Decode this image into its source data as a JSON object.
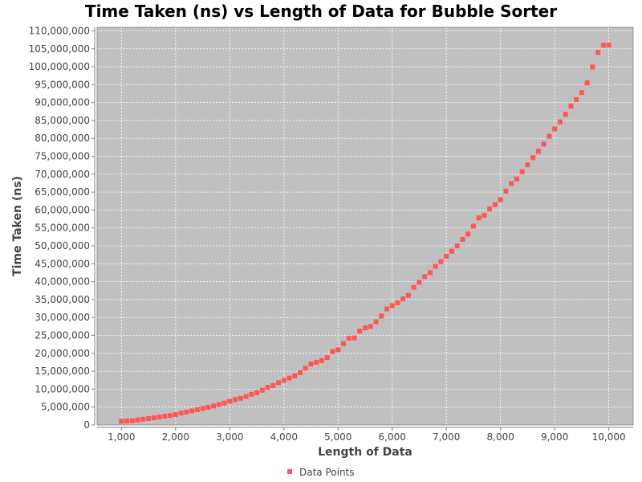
{
  "chart_data": {
    "type": "scatter",
    "title": "Time Taken (ns) vs Length of Data for Bubble Sorter",
    "xlabel": "Length of Data",
    "ylabel": "Time Taken (ns)",
    "xlim": [
      550,
      10450
    ],
    "ylim": [
      0,
      111000000
    ],
    "x_ticks": [
      1000,
      2000,
      3000,
      4000,
      5000,
      6000,
      7000,
      8000,
      9000,
      10000
    ],
    "x_tick_labels": [
      "1,000",
      "2,000",
      "3,000",
      "4,000",
      "5,000",
      "6,000",
      "7,000",
      "8,000",
      "9,000",
      "10,000"
    ],
    "y_ticks": [
      0,
      5000000,
      10000000,
      15000000,
      20000000,
      25000000,
      30000000,
      35000000,
      40000000,
      45000000,
      50000000,
      55000000,
      60000000,
      65000000,
      70000000,
      75000000,
      80000000,
      85000000,
      90000000,
      95000000,
      100000000,
      105000000,
      110000000
    ],
    "y_tick_labels": [
      "0",
      "5,000,000",
      "10,000,000",
      "15,000,000",
      "20,000,000",
      "25,000,000",
      "30,000,000",
      "35,000,000",
      "40,000,000",
      "45,000,000",
      "50,000,000",
      "55,000,000",
      "60,000,000",
      "65,000,000",
      "70,000,000",
      "75,000,000",
      "80,000,000",
      "85,000,000",
      "90,000,000",
      "95,000,000",
      "100,000,000",
      "105,000,000",
      "110,000,000"
    ],
    "grid": true,
    "legend_position": "bottom",
    "series": [
      {
        "name": "Data Points",
        "color": "#ff5555",
        "x": [
          1000,
          1100,
          1200,
          1300,
          1400,
          1500,
          1600,
          1700,
          1800,
          1900,
          2000,
          2100,
          2200,
          2300,
          2400,
          2500,
          2600,
          2700,
          2800,
          2900,
          3000,
          3100,
          3200,
          3300,
          3400,
          3500,
          3600,
          3700,
          3800,
          3900,
          4000,
          4100,
          4200,
          4300,
          4400,
          4500,
          4600,
          4700,
          4800,
          4900,
          5000,
          5100,
          5200,
          5300,
          5400,
          5500,
          5600,
          5700,
          5800,
          5900,
          6000,
          6100,
          6200,
          6300,
          6400,
          6500,
          6600,
          6700,
          6800,
          6900,
          7000,
          7100,
          7200,
          7300,
          7400,
          7500,
          7600,
          7700,
          7800,
          7900,
          8000,
          8100,
          8200,
          8300,
          8400,
          8500,
          8600,
          8700,
          8800,
          8900,
          9000,
          9100,
          9200,
          9300,
          9400,
          9500,
          9600,
          9700,
          9800,
          9900,
          10000
        ],
        "y": [
          1000000,
          1100000,
          1200000,
          1400000,
          1600000,
          1800000,
          2000000,
          2200000,
          2450000,
          2650000,
          2900000,
          3300000,
          3600000,
          3950000,
          4250000,
          4600000,
          4950000,
          5300000,
          5700000,
          6100000,
          6600000,
          7100000,
          7450000,
          7950000,
          8550000,
          9000000,
          9700000,
          10500000,
          11000000,
          11800000,
          12450000,
          13100000,
          13700000,
          14600000,
          15850000,
          17000000,
          17500000,
          17950000,
          18800000,
          20500000,
          21000000,
          22700000,
          24200000,
          24300000,
          26200000,
          27100000,
          27500000,
          28800000,
          30400000,
          32400000,
          33300000,
          34100000,
          35200000,
          36200000,
          38400000,
          39800000,
          41400000,
          42500000,
          44300000,
          45600000,
          47100000,
          48500000,
          50000000,
          51800000,
          53300000,
          55500000,
          57800000,
          58500000,
          60300000,
          61500000,
          62900000,
          65300000,
          67400000,
          68700000,
          70700000,
          72600000,
          74600000,
          76400000,
          78400000,
          80600000,
          82600000,
          84600000,
          86700000,
          89000000,
          90800000,
          92800000,
          95500000,
          99900000,
          104000000,
          106000000,
          106000000
        ]
      }
    ]
  }
}
